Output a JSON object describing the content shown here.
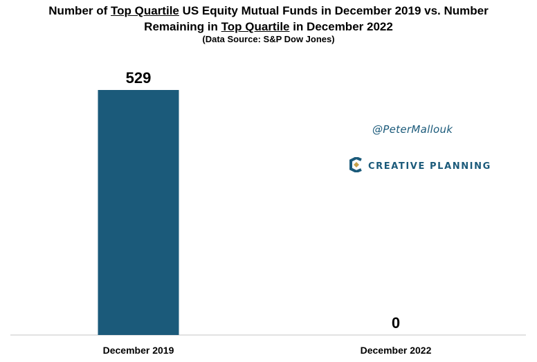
{
  "title": {
    "part1": "Number of ",
    "u1": "Top Quartile",
    "part2": " US Equity Mutual Funds in December 2019 vs. Number",
    "part3": "Remaining in ",
    "u2": "Top Quartile",
    "part4": " in December 2022"
  },
  "subtitle": "(Data Source: S&P Dow Jones)",
  "watermark": {
    "handle": "@PeterMallouk",
    "brand": "CREATIVE PLANNING",
    "brand_icon": "creative-planning-logo-icon"
  },
  "colors": {
    "bar": "#1b5a7a",
    "axis": "#d9d9d9",
    "brand": "#1b5a7a",
    "logo_accent": "#c9a24a"
  },
  "chart_data": {
    "type": "bar",
    "categories": [
      "December 2019",
      "December 2022"
    ],
    "values": [
      529,
      0
    ],
    "data_labels": [
      "529",
      "0"
    ],
    "title": "Number of Top Quartile US Equity Mutual Funds in December 2019 vs. Number Remaining in Top Quartile in December 2022",
    "subtitle": "(Data Source: S&P Dow Jones)",
    "xlabel": "",
    "ylabel": "",
    "ylim": [
      0,
      529
    ],
    "grid": false,
    "legend": "none"
  }
}
